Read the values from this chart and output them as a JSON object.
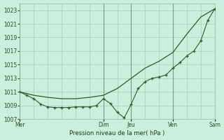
{
  "title": "",
  "xlabel": "Pression niveau de la mer( hPa )",
  "ylabel": "",
  "background_color": "#cceedd",
  "plot_bg_color": "#cceedd",
  "grid_color": "#aaccbb",
  "line_color": "#2a5c2a",
  "ylim": [
    1007,
    1024
  ],
  "ytick_min": 1007,
  "ytick_max": 1023,
  "ytick_step": 2,
  "xlim_min": 0,
  "xlim_max": 42,
  "x_day_labels": [
    "Mer",
    "Dim",
    "Jeu",
    "Ven",
    "Sam"
  ],
  "x_day_positions": [
    0,
    18,
    24,
    33,
    42
  ],
  "x_vlines": [
    0,
    18,
    24,
    33,
    42
  ],
  "smooth_line_x": [
    0,
    3,
    6,
    9,
    12,
    15,
    18,
    21,
    24,
    27,
    30,
    33,
    36,
    39,
    42
  ],
  "smooth_line_y": [
    1011,
    1010.5,
    1010.2,
    1010.0,
    1010.0,
    1010.2,
    1010.5,
    1011.5,
    1013.0,
    1014.5,
    1015.5,
    1016.8,
    1019.5,
    1022.0,
    1023.2
  ],
  "detail_line_x": [
    0,
    1.5,
    3,
    4.5,
    6,
    7.5,
    9,
    10.5,
    12,
    13.5,
    15,
    16.5,
    18,
    19.5,
    21,
    22.5,
    24,
    25.5,
    27,
    28.5,
    30,
    31.5,
    33,
    34.5,
    36,
    37.5,
    39,
    40.5,
    42
  ],
  "detail_line_y": [
    1011,
    1010.5,
    1010.0,
    1009.2,
    1008.8,
    1008.7,
    1008.7,
    1008.7,
    1008.8,
    1008.8,
    1008.8,
    1009.0,
    1010.0,
    1009.3,
    1008.0,
    1007.2,
    1009.2,
    1011.5,
    1012.5,
    1013.0,
    1013.2,
    1013.5,
    1014.5,
    1015.3,
    1016.3,
    1017.0,
    1018.5,
    1021.5,
    1023.2
  ]
}
